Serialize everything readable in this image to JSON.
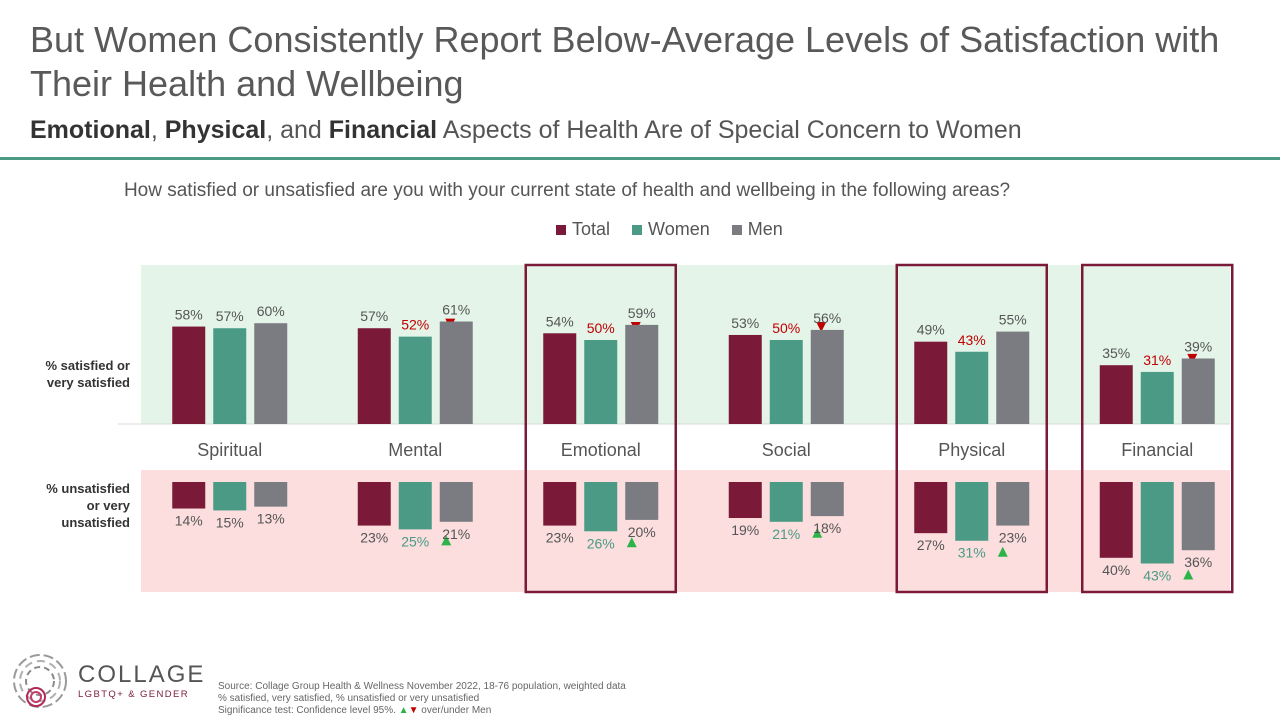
{
  "header": {
    "title": "But Women Consistently Report Below-Average Levels of Satisfaction with Their Health and Wellbeing",
    "subtitle_parts": [
      "Emotional",
      ", ",
      "Physical",
      ", and ",
      "Financial",
      " Aspects of Health Are of Special Concern to Women"
    ]
  },
  "chart_data": {
    "type": "bar",
    "title": "How satisfied or unsatisfied are you with your current state of health and wellbeing in the following areas?",
    "categories": [
      "Spiritual",
      "Mental",
      "Emotional",
      "Social",
      "Physical",
      "Financial"
    ],
    "highlighted_categories": [
      "Emotional",
      "Physical",
      "Financial"
    ],
    "series": [
      {
        "name": "Total",
        "color": "#7b1a38"
      },
      {
        "name": "Women",
        "color": "#4a9a86"
      },
      {
        "name": "Men",
        "color": "#7b7c81"
      }
    ],
    "panels": [
      {
        "label": "% satisfied or very satisfied",
        "background": "#e4f4e9",
        "values": {
          "Total": [
            58,
            57,
            54,
            53,
            49,
            35
          ],
          "Women": [
            57,
            52,
            50,
            50,
            43,
            31
          ],
          "Men": [
            60,
            61,
            59,
            56,
            55,
            39
          ]
        },
        "women_sig": [
          "",
          "down",
          "down",
          "down",
          "down",
          "down"
        ]
      },
      {
        "label": "% unsatisfied or very unsatisfied",
        "background": "#fbdedd",
        "values": {
          "Total": [
            14,
            23,
            23,
            19,
            27,
            40
          ],
          "Women": [
            15,
            25,
            26,
            21,
            31,
            43
          ],
          "Men": [
            13,
            21,
            20,
            18,
            23,
            36
          ]
        },
        "women_sig": [
          "",
          "up",
          "up",
          "up",
          "up",
          "up"
        ]
      }
    ],
    "value_suffix": "%"
  },
  "legend": [
    "Total",
    "Women",
    "Men"
  ],
  "row_labels": {
    "satisfied": [
      "% satisfied or",
      "very satisfied"
    ],
    "unsatisfied": [
      "% unsatisfied",
      "or very",
      "unsatisfied"
    ]
  },
  "source": {
    "lines": [
      "Source: Collage Group Health & Wellness November 2022, 18-76 population, weighted data",
      "% satisfied, very satisfied, % unsatisfied or very unsatisfied"
    ],
    "sig_prefix": "Significance test: Confidence level 95%. ",
    "sig_up": "▲",
    "sig_down": "▼",
    "sig_suffix": " over/under Men"
  },
  "logo": {
    "name": "COLLAGE",
    "sub": "LGBTQ+ & GENDER"
  },
  "colors": {
    "accent_rule": "#4a9a86",
    "highlight_border": "#7b1a38",
    "sig_up": "#2db34a",
    "sig_down": "#c00000"
  }
}
